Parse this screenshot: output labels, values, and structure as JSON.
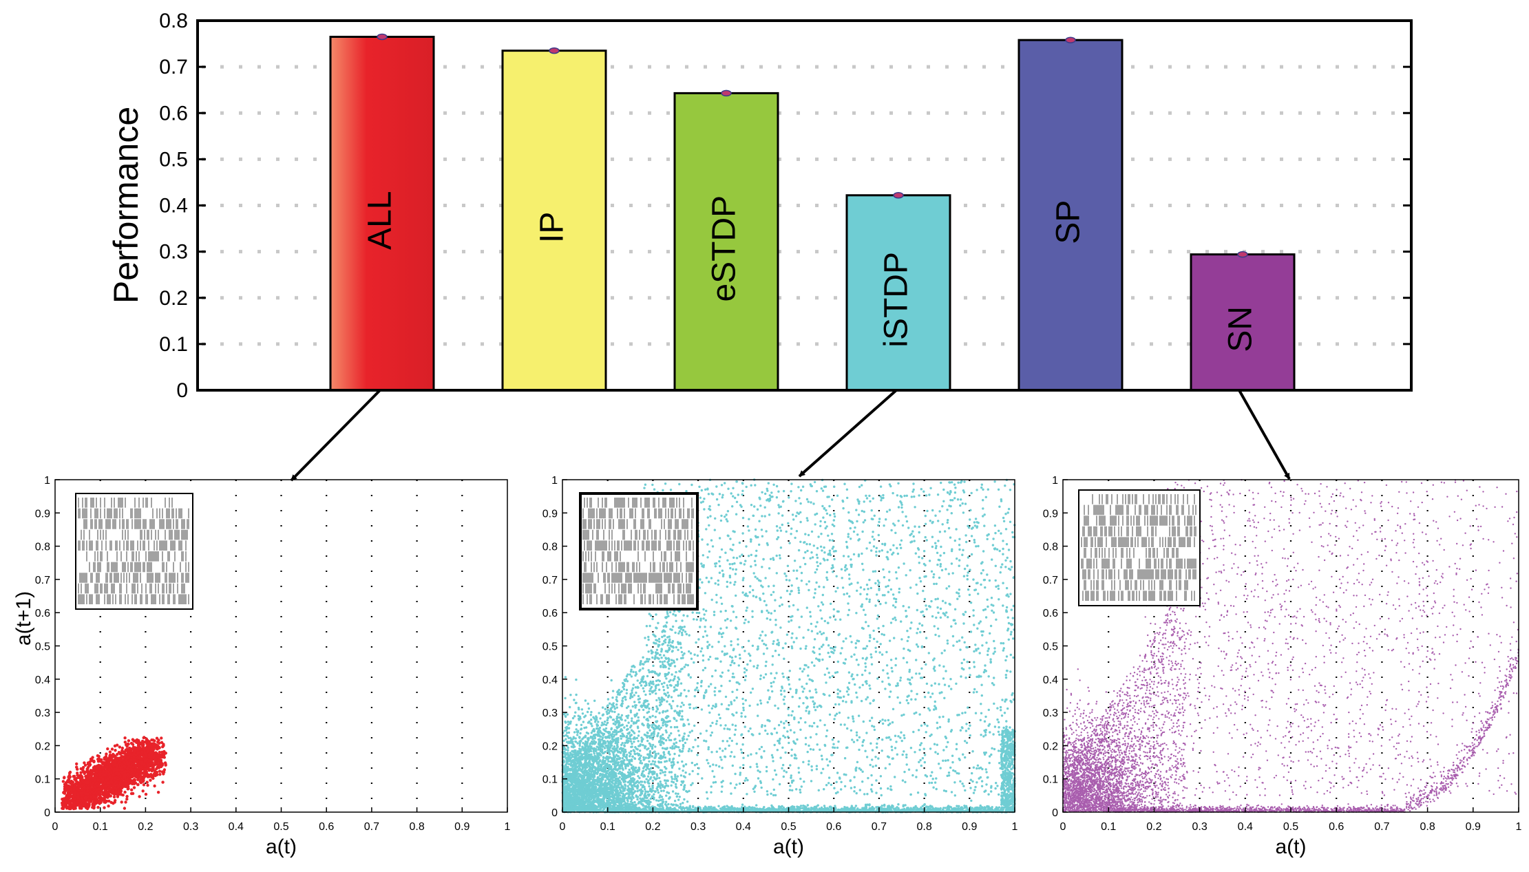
{
  "chart_data": [
    {
      "type": "bar",
      "title": "",
      "xlabel": "",
      "ylabel": "Performance",
      "ylim": [
        0,
        0.8
      ],
      "yticks": [
        "0",
        "0.1",
        "0.2",
        "0.3",
        "0.4",
        "0.5",
        "0.6",
        "0.7",
        "0.8"
      ],
      "grid": true,
      "categories": [
        "ALL",
        "IP",
        "eSTDP",
        "iSTDP",
        "SP",
        "SN"
      ],
      "values": [
        0.765,
        0.735,
        0.643,
        0.422,
        0.758,
        0.294
      ],
      "colors": [
        "#e8232a",
        "#f6f06e",
        "#96c83e",
        "#6fcdd3",
        "#5a5ea8",
        "#943d97"
      ]
    },
    {
      "type": "scatter",
      "source_bar": "ALL",
      "xlabel": "a(t)",
      "ylabel": "a(t+1)",
      "xlim": [
        0,
        1
      ],
      "ylim": [
        0,
        1
      ],
      "ticks": [
        "0",
        "0.1",
        "0.2",
        "0.3",
        "0.4",
        "0.5",
        "0.6",
        "0.7",
        "0.8",
        "0.9",
        "1"
      ],
      "grid": true,
      "color": "#e8232a",
      "distribution": "dense elliptical cluster from about (0.02, 0.02) to (0.24, 0.22)",
      "inset": "spike raster"
    },
    {
      "type": "scatter",
      "source_bar": "iSTDP",
      "xlabel": "a(t)",
      "ylabel": "",
      "xlim": [
        0,
        1
      ],
      "ylim": [
        0,
        1
      ],
      "ticks": [
        "0",
        "0.1",
        "0.2",
        "0.3",
        "0.4",
        "0.5",
        "0.6",
        "0.7",
        "0.8",
        "0.9",
        "1"
      ],
      "grid": true,
      "color": "#6fcdd3",
      "distribution": "dense near origin, spreading to fill upper region, strong band along a(t+1)=0",
      "inset": "spike raster"
    },
    {
      "type": "scatter",
      "source_bar": "SN",
      "xlabel": "a(t)",
      "ylabel": "",
      "xlim": [
        0,
        1
      ],
      "ylim": [
        0,
        1
      ],
      "ticks": [
        "0",
        "0.1",
        "0.2",
        "0.3",
        "0.4",
        "0.5",
        "0.6",
        "0.7",
        "0.8",
        "0.9",
        "1"
      ],
      "grid": true,
      "color": "#a95eae",
      "distribution": "dense near origin, diffuse spread, band along bottom curving up near a(t)=0.9",
      "inset": "spike raster"
    }
  ]
}
